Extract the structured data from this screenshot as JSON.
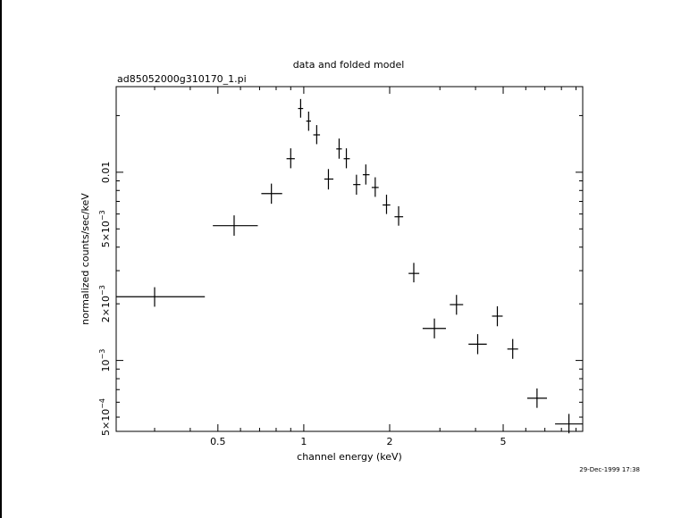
{
  "chart_data": {
    "type": "scatter",
    "title": "data and folded model",
    "subtitle": "ad85052000g310170_1.pi",
    "xlabel": "channel energy (keV)",
    "ylabel": "normalized counts/sec/keV",
    "timestamp": "29-Dec-1999 17:38",
    "x_scale": "log",
    "y_scale": "log",
    "xlim": [
      0.22,
      9.5
    ],
    "ylim": [
      0.00042,
      0.0285
    ],
    "x_ticks": [
      {
        "value": 0.5,
        "label": "0.5"
      },
      {
        "value": 1,
        "label": "1"
      },
      {
        "value": 2,
        "label": "2"
      },
      {
        "value": 5,
        "label": "5"
      }
    ],
    "y_ticks": [
      {
        "value": 0.0005,
        "label": "5×10",
        "exp": "−4"
      },
      {
        "value": 0.001,
        "label": "10",
        "exp": "−3"
      },
      {
        "value": 0.002,
        "label": "2×10",
        "exp": "−3"
      },
      {
        "value": 0.005,
        "label": "5×10",
        "exp": "−3"
      },
      {
        "value": 0.01,
        "label": "0.01",
        "exp": ""
      }
    ],
    "points": [
      {
        "x": 0.3,
        "xlo": 0.22,
        "xhi": 0.45,
        "y": 0.00218,
        "ylo": 0.00193,
        "yhi": 0.00245
      },
      {
        "x": 0.57,
        "xlo": 0.48,
        "xhi": 0.69,
        "y": 0.0052,
        "ylo": 0.0046,
        "yhi": 0.0059
      },
      {
        "x": 0.77,
        "xlo": 0.71,
        "xhi": 0.84,
        "y": 0.0077,
        "ylo": 0.0068,
        "yhi": 0.0087
      },
      {
        "x": 0.9,
        "xlo": 0.87,
        "xhi": 0.93,
        "y": 0.0118,
        "ylo": 0.0105,
        "yhi": 0.0134
      },
      {
        "x": 0.975,
        "xlo": 0.955,
        "xhi": 0.995,
        "y": 0.0218,
        "ylo": 0.0195,
        "yhi": 0.0245
      },
      {
        "x": 1.04,
        "xlo": 1.02,
        "xhi": 1.06,
        "y": 0.0187,
        "ylo": 0.0166,
        "yhi": 0.021
      },
      {
        "x": 1.11,
        "xlo": 1.08,
        "xhi": 1.14,
        "y": 0.0158,
        "ylo": 0.0141,
        "yhi": 0.0178
      },
      {
        "x": 1.22,
        "xlo": 1.18,
        "xhi": 1.27,
        "y": 0.0092,
        "ylo": 0.0081,
        "yhi": 0.0104
      },
      {
        "x": 1.33,
        "xlo": 1.3,
        "xhi": 1.36,
        "y": 0.0133,
        "ylo": 0.0118,
        "yhi": 0.0151
      },
      {
        "x": 1.41,
        "xlo": 1.38,
        "xhi": 1.45,
        "y": 0.0118,
        "ylo": 0.0105,
        "yhi": 0.0134
      },
      {
        "x": 1.53,
        "xlo": 1.49,
        "xhi": 1.58,
        "y": 0.0086,
        "ylo": 0.0076,
        "yhi": 0.0097
      },
      {
        "x": 1.65,
        "xlo": 1.61,
        "xhi": 1.7,
        "y": 0.0097,
        "ylo": 0.0086,
        "yhi": 0.011
      },
      {
        "x": 1.78,
        "xlo": 1.73,
        "xhi": 1.83,
        "y": 0.0083,
        "ylo": 0.0074,
        "yhi": 0.0094
      },
      {
        "x": 1.95,
        "xlo": 1.89,
        "xhi": 2.01,
        "y": 0.0067,
        "ylo": 0.006,
        "yhi": 0.0076
      },
      {
        "x": 2.15,
        "xlo": 2.08,
        "xhi": 2.23,
        "y": 0.0058,
        "ylo": 0.0052,
        "yhi": 0.0066
      },
      {
        "x": 2.43,
        "xlo": 2.33,
        "xhi": 2.54,
        "y": 0.0029,
        "ylo": 0.0026,
        "yhi": 0.0033
      },
      {
        "x": 2.87,
        "xlo": 2.61,
        "xhi": 3.15,
        "y": 0.00148,
        "ylo": 0.00131,
        "yhi": 0.00167
      },
      {
        "x": 3.43,
        "xlo": 3.25,
        "xhi": 3.62,
        "y": 0.00198,
        "ylo": 0.00175,
        "yhi": 0.00223
      },
      {
        "x": 4.07,
        "xlo": 3.78,
        "xhi": 4.38,
        "y": 0.00122,
        "ylo": 0.00108,
        "yhi": 0.00138
      },
      {
        "x": 4.77,
        "xlo": 4.57,
        "xhi": 4.98,
        "y": 0.00172,
        "ylo": 0.00152,
        "yhi": 0.00194
      },
      {
        "x": 5.4,
        "xlo": 5.17,
        "xhi": 5.64,
        "y": 0.00115,
        "ylo": 0.00102,
        "yhi": 0.0013
      },
      {
        "x": 6.57,
        "xlo": 6.07,
        "xhi": 7.12,
        "y": 0.00063,
        "ylo": 0.00056,
        "yhi": 0.00071
      },
      {
        "x": 8.5,
        "xlo": 7.6,
        "xhi": 9.5,
        "y": 0.00046,
        "ylo": 0.00041,
        "yhi": 0.00052
      }
    ]
  }
}
